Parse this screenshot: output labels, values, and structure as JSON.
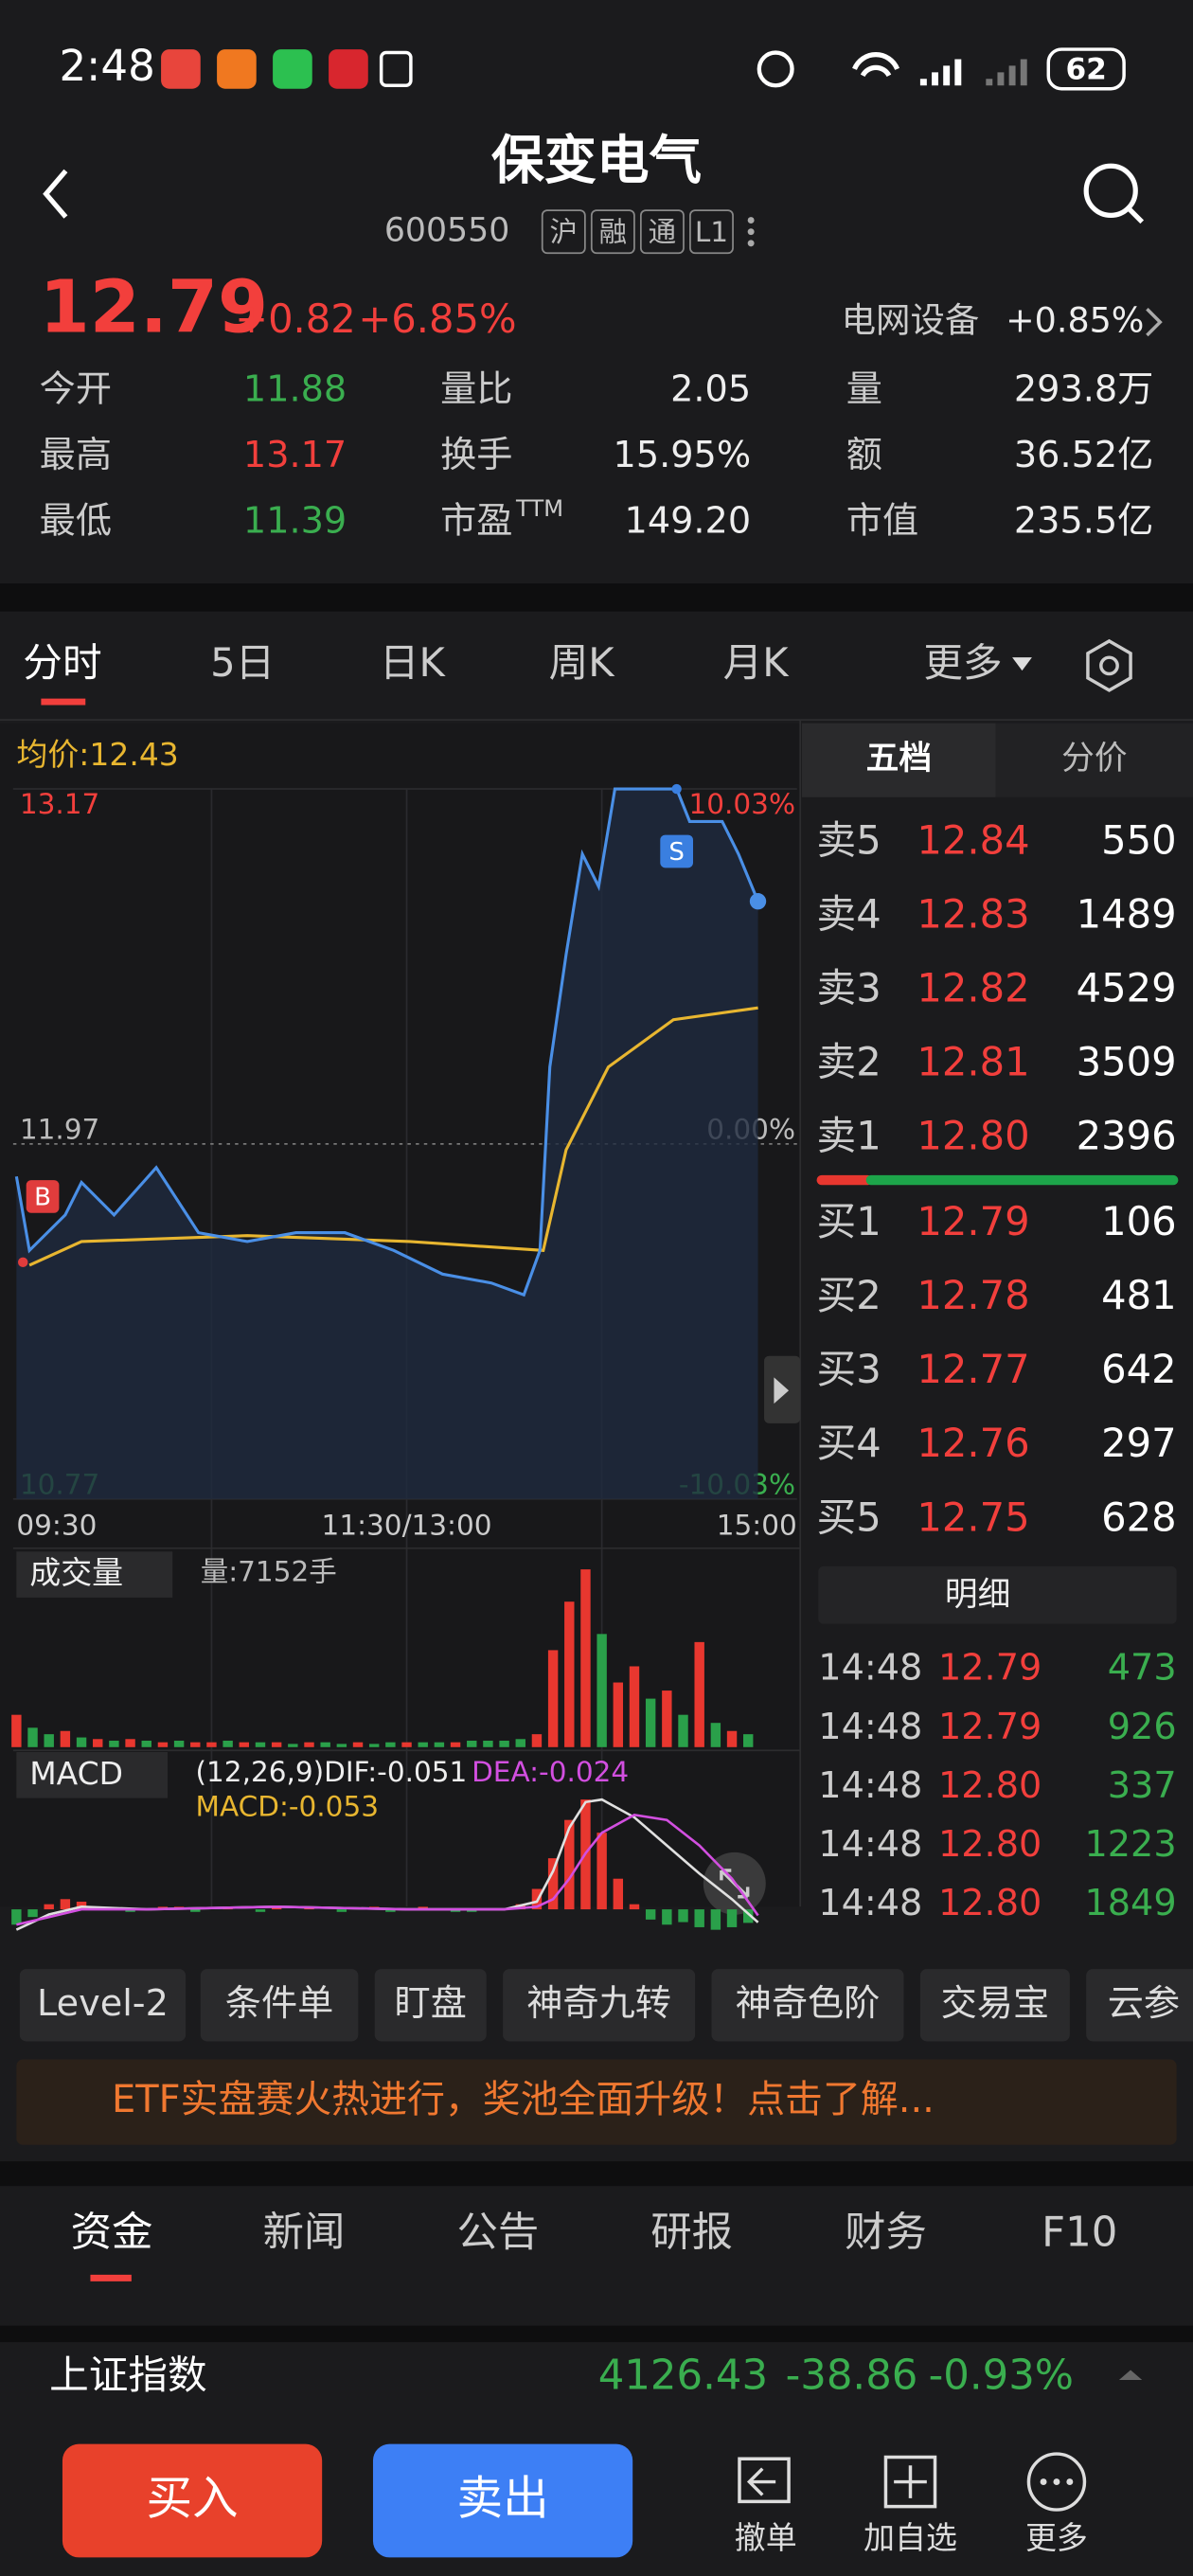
{
  "status_bar": {
    "time": "2:48",
    "battery": "62"
  },
  "header": {
    "title": "保变电气",
    "code": "600550",
    "tags": [
      "沪",
      "融",
      "通",
      "L1"
    ]
  },
  "quote": {
    "price": "12.79",
    "change": "+0.82",
    "change_pct": "+6.85%",
    "sector": "电网设备",
    "sector_change": "+0.85%",
    "stats": [
      [
        {
          "label": "今开",
          "value": "11.88"
        },
        {
          "label": "量比",
          "value": "2.05"
        },
        {
          "label": "量",
          "value": "293.8万"
        }
      ],
      [
        {
          "label": "最高",
          "value": "13.17"
        },
        {
          "label": "换手",
          "value": "15.95%"
        },
        {
          "label": "额",
          "value": "36.52亿"
        }
      ],
      [
        {
          "label": "最低",
          "value": "11.39"
        },
        {
          "label": "市盈",
          "sup": "TTM",
          "value": "149.20"
        },
        {
          "label": "市值",
          "value": "235.5亿"
        }
      ]
    ]
  },
  "chart_tabs": [
    "分时",
    "5日",
    "日K",
    "周K",
    "月K",
    "更多"
  ],
  "intraday": {
    "avg_label": "均价:12.43",
    "ylim": [
      10.77,
      13.17
    ],
    "yticks": [
      13.17,
      11.97,
      10.77
    ],
    "pct_labels": [
      "10.03%",
      "0.00%",
      "-10.03%"
    ],
    "xlim": [
      0,
      240
    ],
    "xticks": [
      {
        "value": 0,
        "label": "09:30"
      },
      {
        "value": 120,
        "label": "11:30/13:00"
      },
      {
        "value": 240,
        "label": "15:00"
      }
    ],
    "xgrid": [
      60,
      120,
      180
    ],
    "price": {
      "color": "#4a8fe6",
      "x": [
        0,
        4,
        15,
        20,
        30,
        43,
        56,
        71,
        86,
        101,
        116,
        131,
        146,
        156,
        161,
        164,
        169,
        174,
        179,
        184,
        203,
        207,
        217,
        222,
        228
      ],
      "values": [
        11.86,
        11.61,
        11.73,
        11.84,
        11.73,
        11.89,
        11.67,
        11.64,
        11.67,
        11.67,
        11.61,
        11.53,
        11.5,
        11.46,
        11.61,
        12.23,
        12.61,
        12.95,
        12.84,
        13.17,
        13.17,
        13.06,
        13.06,
        12.95,
        12.79
      ]
    },
    "avg": {
      "color": "#e8b630",
      "x": [
        4,
        20,
        71,
        121,
        162,
        169,
        182,
        202,
        228
      ],
      "values": [
        11.56,
        11.64,
        11.66,
        11.64,
        11.61,
        11.95,
        12.23,
        12.39,
        12.43
      ]
    },
    "markers": [
      {
        "label": "B",
        "minute": 2,
        "price": 11.57,
        "color": "#e03c3c"
      },
      {
        "label": "S",
        "minute": 203,
        "price": 13.17,
        "color": "#3a7fe0"
      }
    ]
  },
  "volume": {
    "label": "成交量",
    "summary": "量:7152手",
    "ylim": [
      0,
      120
    ],
    "x": [
      0,
      5,
      10,
      15,
      20,
      25,
      30,
      35,
      40,
      45,
      50,
      55,
      60,
      65,
      70,
      75,
      80,
      85,
      90,
      95,
      100,
      105,
      110,
      115,
      120,
      125,
      130,
      135,
      140,
      145,
      150,
      155,
      160,
      165,
      170,
      175,
      180,
      185,
      190,
      195,
      200,
      205,
      210,
      215,
      220,
      225
    ],
    "values": [
      20,
      12,
      8,
      10,
      6,
      5,
      4,
      5,
      4,
      3,
      4,
      3,
      3,
      4,
      3,
      3,
      3,
      2,
      3,
      3,
      2,
      3,
      2,
      3,
      3,
      3,
      3,
      3,
      4,
      4,
      4,
      5,
      8,
      60,
      90,
      110,
      70,
      40,
      50,
      30,
      35,
      20,
      65,
      15,
      10,
      8
    ],
    "directions": [
      "up",
      "down",
      "down",
      "up",
      "down",
      "up",
      "down",
      "up",
      "down",
      "up",
      "down",
      "up",
      "up",
      "down",
      "up",
      "down",
      "up",
      "down",
      "up",
      "down",
      "down",
      "up",
      "down",
      "down",
      "up",
      "down",
      "down",
      "up",
      "down",
      "down",
      "down",
      "down",
      "up",
      "up",
      "up",
      "up",
      "down",
      "up",
      "up",
      "down",
      "up",
      "down",
      "up",
      "down",
      "up",
      "down"
    ]
  },
  "macd": {
    "label": "MACD",
    "dif_label": "(12,26,9)DIF:-0.051",
    "dea_label": "DEA:-0.024",
    "macd_label": "MACD:-0.053",
    "ylim": [
      -0.15,
      0.59
    ],
    "hist_x": [
      0,
      5,
      10,
      15,
      20,
      25,
      30,
      35,
      40,
      45,
      50,
      55,
      60,
      65,
      70,
      75,
      80,
      85,
      90,
      95,
      100,
      105,
      110,
      115,
      120,
      125,
      130,
      135,
      140,
      145,
      150,
      155,
      160,
      165,
      170,
      175,
      180,
      185,
      190,
      195,
      200,
      205,
      210,
      215,
      220,
      225
    ],
    "hist": [
      -0.06,
      -0.03,
      0.02,
      0.04,
      0.03,
      0.01,
      0.0,
      -0.01,
      0.0,
      0.01,
      0.01,
      -0.01,
      0.0,
      0.01,
      0.0,
      -0.01,
      0.01,
      0.0,
      0.01,
      0.0,
      -0.01,
      0.0,
      0.01,
      -0.01,
      0.0,
      0.01,
      0.0,
      -0.01,
      -0.01,
      0.0,
      0.0,
      0.02,
      0.08,
      0.2,
      0.35,
      0.43,
      0.3,
      0.12,
      0.02,
      -0.04,
      -0.06,
      -0.05,
      -0.07,
      -0.08,
      -0.07,
      -0.053
    ],
    "dif": {
      "color": "#e0e0e0",
      "x": [
        0,
        10,
        20,
        40,
        80,
        120,
        150,
        160,
        165,
        170,
        175,
        180,
        190,
        200,
        210,
        220,
        228
      ],
      "values": [
        -0.08,
        -0.02,
        0.01,
        0.0,
        0.01,
        0.0,
        0.0,
        0.03,
        0.15,
        0.32,
        0.42,
        0.43,
        0.36,
        0.25,
        0.14,
        0.04,
        -0.051
      ]
    },
    "dea": {
      "color": "#d24fe0",
      "x": [
        0,
        10,
        20,
        40,
        80,
        120,
        150,
        160,
        165,
        170,
        175,
        180,
        190,
        200,
        210,
        220,
        228
      ],
      "values": [
        -0.06,
        -0.03,
        0.0,
        0.0,
        0.01,
        0.0,
        0.0,
        0.01,
        0.04,
        0.12,
        0.22,
        0.3,
        0.37,
        0.35,
        0.25,
        0.12,
        -0.024
      ]
    }
  },
  "order_book": {
    "tabs": [
      "五档",
      "分价"
    ],
    "asks": [
      {
        "label": "卖5",
        "price": "12.84",
        "volume": "550"
      },
      {
        "label": "卖4",
        "price": "12.83",
        "volume": "1489"
      },
      {
        "label": "卖3",
        "price": "12.82",
        "volume": "4529"
      },
      {
        "label": "卖2",
        "price": "12.81",
        "volume": "3509"
      },
      {
        "label": "卖1",
        "price": "12.80",
        "volume": "2396"
      }
    ],
    "bids": [
      {
        "label": "买1",
        "price": "12.79",
        "volume": "106"
      },
      {
        "label": "买2",
        "price": "12.78",
        "volume": "481"
      },
      {
        "label": "买3",
        "price": "12.77",
        "volume": "642"
      },
      {
        "label": "买4",
        "price": "12.76",
        "volume": "297"
      },
      {
        "label": "买5",
        "price": "12.75",
        "volume": "628"
      }
    ],
    "detail_label": "明细",
    "trades": [
      {
        "time": "14:48",
        "price": "12.79",
        "volume": "473"
      },
      {
        "time": "14:48",
        "price": "12.79",
        "volume": "926"
      },
      {
        "time": "14:48",
        "price": "12.80",
        "volume": "337"
      },
      {
        "time": "14:48",
        "price": "12.80",
        "volume": "1223"
      },
      {
        "time": "14:48",
        "price": "12.80",
        "volume": "1849"
      }
    ]
  },
  "tools": [
    "Level-2",
    "条件单",
    "盯盘",
    "神奇九转",
    "神奇色阶",
    "交易宝",
    "云参"
  ],
  "banner": "ETF实盘赛火热进行，奖池全面升级！点击了解...",
  "bottom_tabs": [
    "资金",
    "新闻",
    "公告",
    "研报",
    "财务",
    "F10"
  ],
  "index": {
    "name": "上证指数",
    "value": "4126.43",
    "change": "-38.86",
    "change_pct": "-0.93%"
  },
  "actions": {
    "buy": "买入",
    "sell": "卖出",
    "tools": [
      "撤单",
      "加自选",
      "更多"
    ]
  }
}
